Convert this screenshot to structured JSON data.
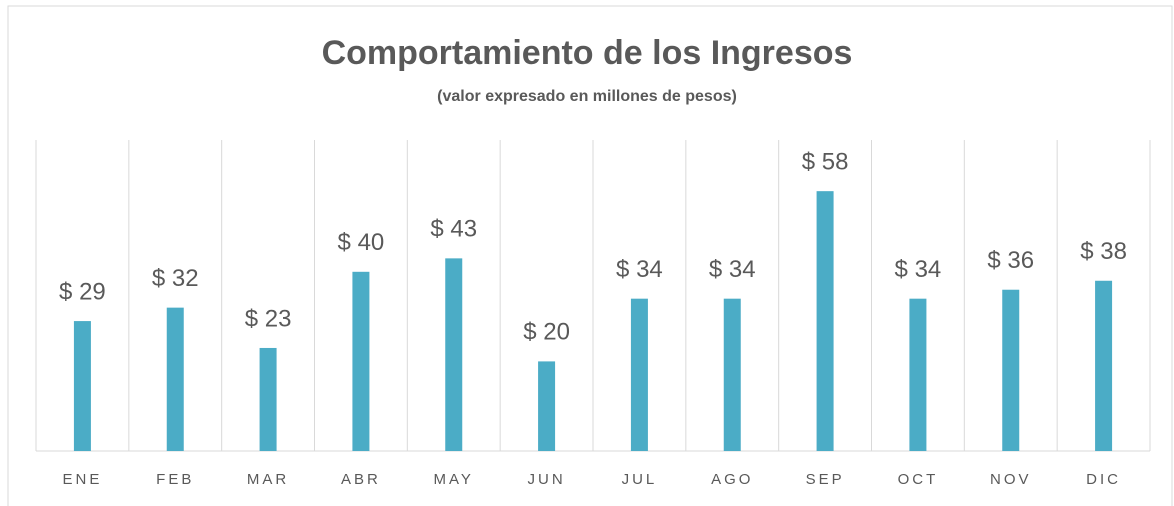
{
  "chart_data": {
    "type": "bar",
    "title": "Comportamiento de los Ingresos",
    "subtitle": "(valor expresado en millones de pesos)",
    "categories": [
      "ENE",
      "FEB",
      "MAR",
      "ABR",
      "MAY",
      "JUN",
      "JUL",
      "AGO",
      "SEP",
      "OCT",
      "NOV",
      "DIC"
    ],
    "values": [
      29,
      32,
      23,
      40,
      43,
      20,
      34,
      34,
      58,
      34,
      36,
      38
    ],
    "value_labels": [
      "$ 29",
      "$ 32",
      "$ 23",
      "$ 40",
      "$ 43",
      "$ 20",
      "$ 34",
      "$ 34",
      "$ 58",
      "$ 34",
      "$ 36",
      "$ 38"
    ],
    "color": "#4bacc6",
    "grid": true
  }
}
